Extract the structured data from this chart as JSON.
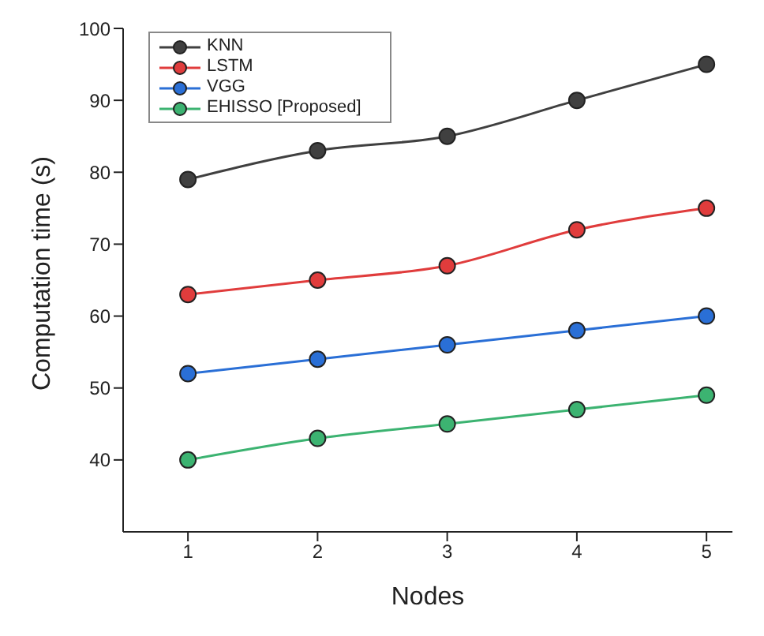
{
  "chart_data": {
    "type": "line",
    "xlabel": "Nodes",
    "ylabel": "Computation time (s)",
    "x": [
      1,
      2,
      3,
      4,
      5
    ],
    "xlim": [
      0.5,
      5.2
    ],
    "xticks": [
      1,
      2,
      3,
      4,
      5
    ],
    "ylim": [
      30,
      100
    ],
    "yticks": [
      40,
      50,
      60,
      70,
      80,
      90,
      100
    ],
    "marker": "circle",
    "legend": "top left",
    "grid": false,
    "series": [
      {
        "name": "KNN",
        "color": "#404040",
        "values": [
          79,
          83,
          85,
          90,
          95
        ]
      },
      {
        "name": "LSTM",
        "color": "#e03c3c",
        "values": [
          63,
          65,
          67,
          72,
          75
        ]
      },
      {
        "name": "VGG",
        "color": "#2a6fd6",
        "values": [
          52,
          54,
          56,
          58,
          60
        ]
      },
      {
        "name": "EHISSO [Proposed]",
        "color": "#3cb371",
        "values": [
          40,
          43,
          45,
          47,
          49
        ]
      }
    ]
  }
}
